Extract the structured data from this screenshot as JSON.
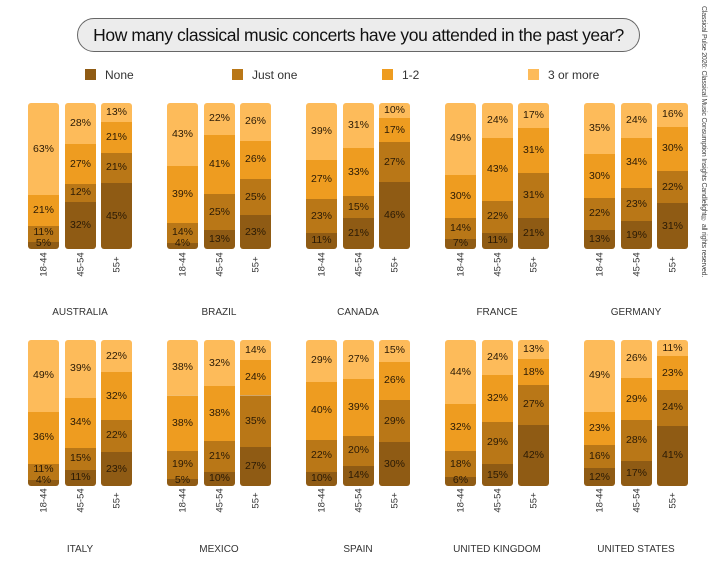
{
  "chart_data": {
    "type": "bar",
    "stacked": true,
    "normalized": true,
    "title": "How many classical music concerts have you attended in the past year?",
    "legend": [
      "None",
      "Just one",
      "1-2",
      "3 or more"
    ],
    "legend_position": "top",
    "colors": [
      "#8f5b14",
      "#b97717",
      "#ee9c20",
      "#fdbb5a"
    ],
    "age_groups": [
      "18-44",
      "45-54",
      "55+"
    ],
    "countries": [
      {
        "name": "AUSTRALIA",
        "bars": [
          [
            5,
            11,
            21,
            63
          ],
          [
            32,
            12,
            27,
            28
          ],
          [
            45,
            21,
            21,
            13
          ]
        ]
      },
      {
        "name": "BRAZIL",
        "bars": [
          [
            4,
            14,
            39,
            43
          ],
          [
            13,
            25,
            41,
            22
          ],
          [
            23,
            25,
            26,
            26
          ]
        ]
      },
      {
        "name": "CANADA",
        "bars": [
          [
            11,
            23,
            27,
            39
          ],
          [
            21,
            15,
            33,
            31
          ],
          [
            46,
            27,
            17,
            10
          ]
        ]
      },
      {
        "name": "FRANCE",
        "bars": [
          [
            7,
            14,
            30,
            49
          ],
          [
            11,
            22,
            43,
            24
          ],
          [
            21,
            31,
            31,
            17
          ]
        ]
      },
      {
        "name": "GERMANY",
        "bars": [
          [
            13,
            22,
            30,
            35
          ],
          [
            19,
            23,
            34,
            24
          ],
          [
            31,
            22,
            30,
            16
          ]
        ]
      },
      {
        "name": "ITALY",
        "bars": [
          [
            4,
            11,
            36,
            49
          ],
          [
            11,
            15,
            34,
            39
          ],
          [
            23,
            22,
            32,
            22
          ]
        ]
      },
      {
        "name": "MEXICO",
        "bars": [
          [
            5,
            19,
            38,
            38
          ],
          [
            10,
            21,
            38,
            32
          ],
          [
            27,
            35,
            24,
            14
          ]
        ]
      },
      {
        "name": "SPAIN",
        "bars": [
          [
            10,
            22,
            40,
            29
          ],
          [
            14,
            20,
            39,
            27
          ],
          [
            30,
            29,
            26,
            15
          ]
        ]
      },
      {
        "name": "UNITED KINGDOM",
        "bars": [
          [
            6,
            18,
            32,
            44
          ],
          [
            15,
            29,
            32,
            24
          ],
          [
            42,
            27,
            18,
            13
          ]
        ]
      },
      {
        "name": "UNITED STATES",
        "bars": [
          [
            12,
            16,
            23,
            49
          ],
          [
            17,
            28,
            29,
            26
          ],
          [
            41,
            24,
            23,
            11
          ]
        ]
      }
    ]
  },
  "side_note": "Classical Pulse 2026: Classical Music Consumption Insights Candlelight® all rights reserved."
}
